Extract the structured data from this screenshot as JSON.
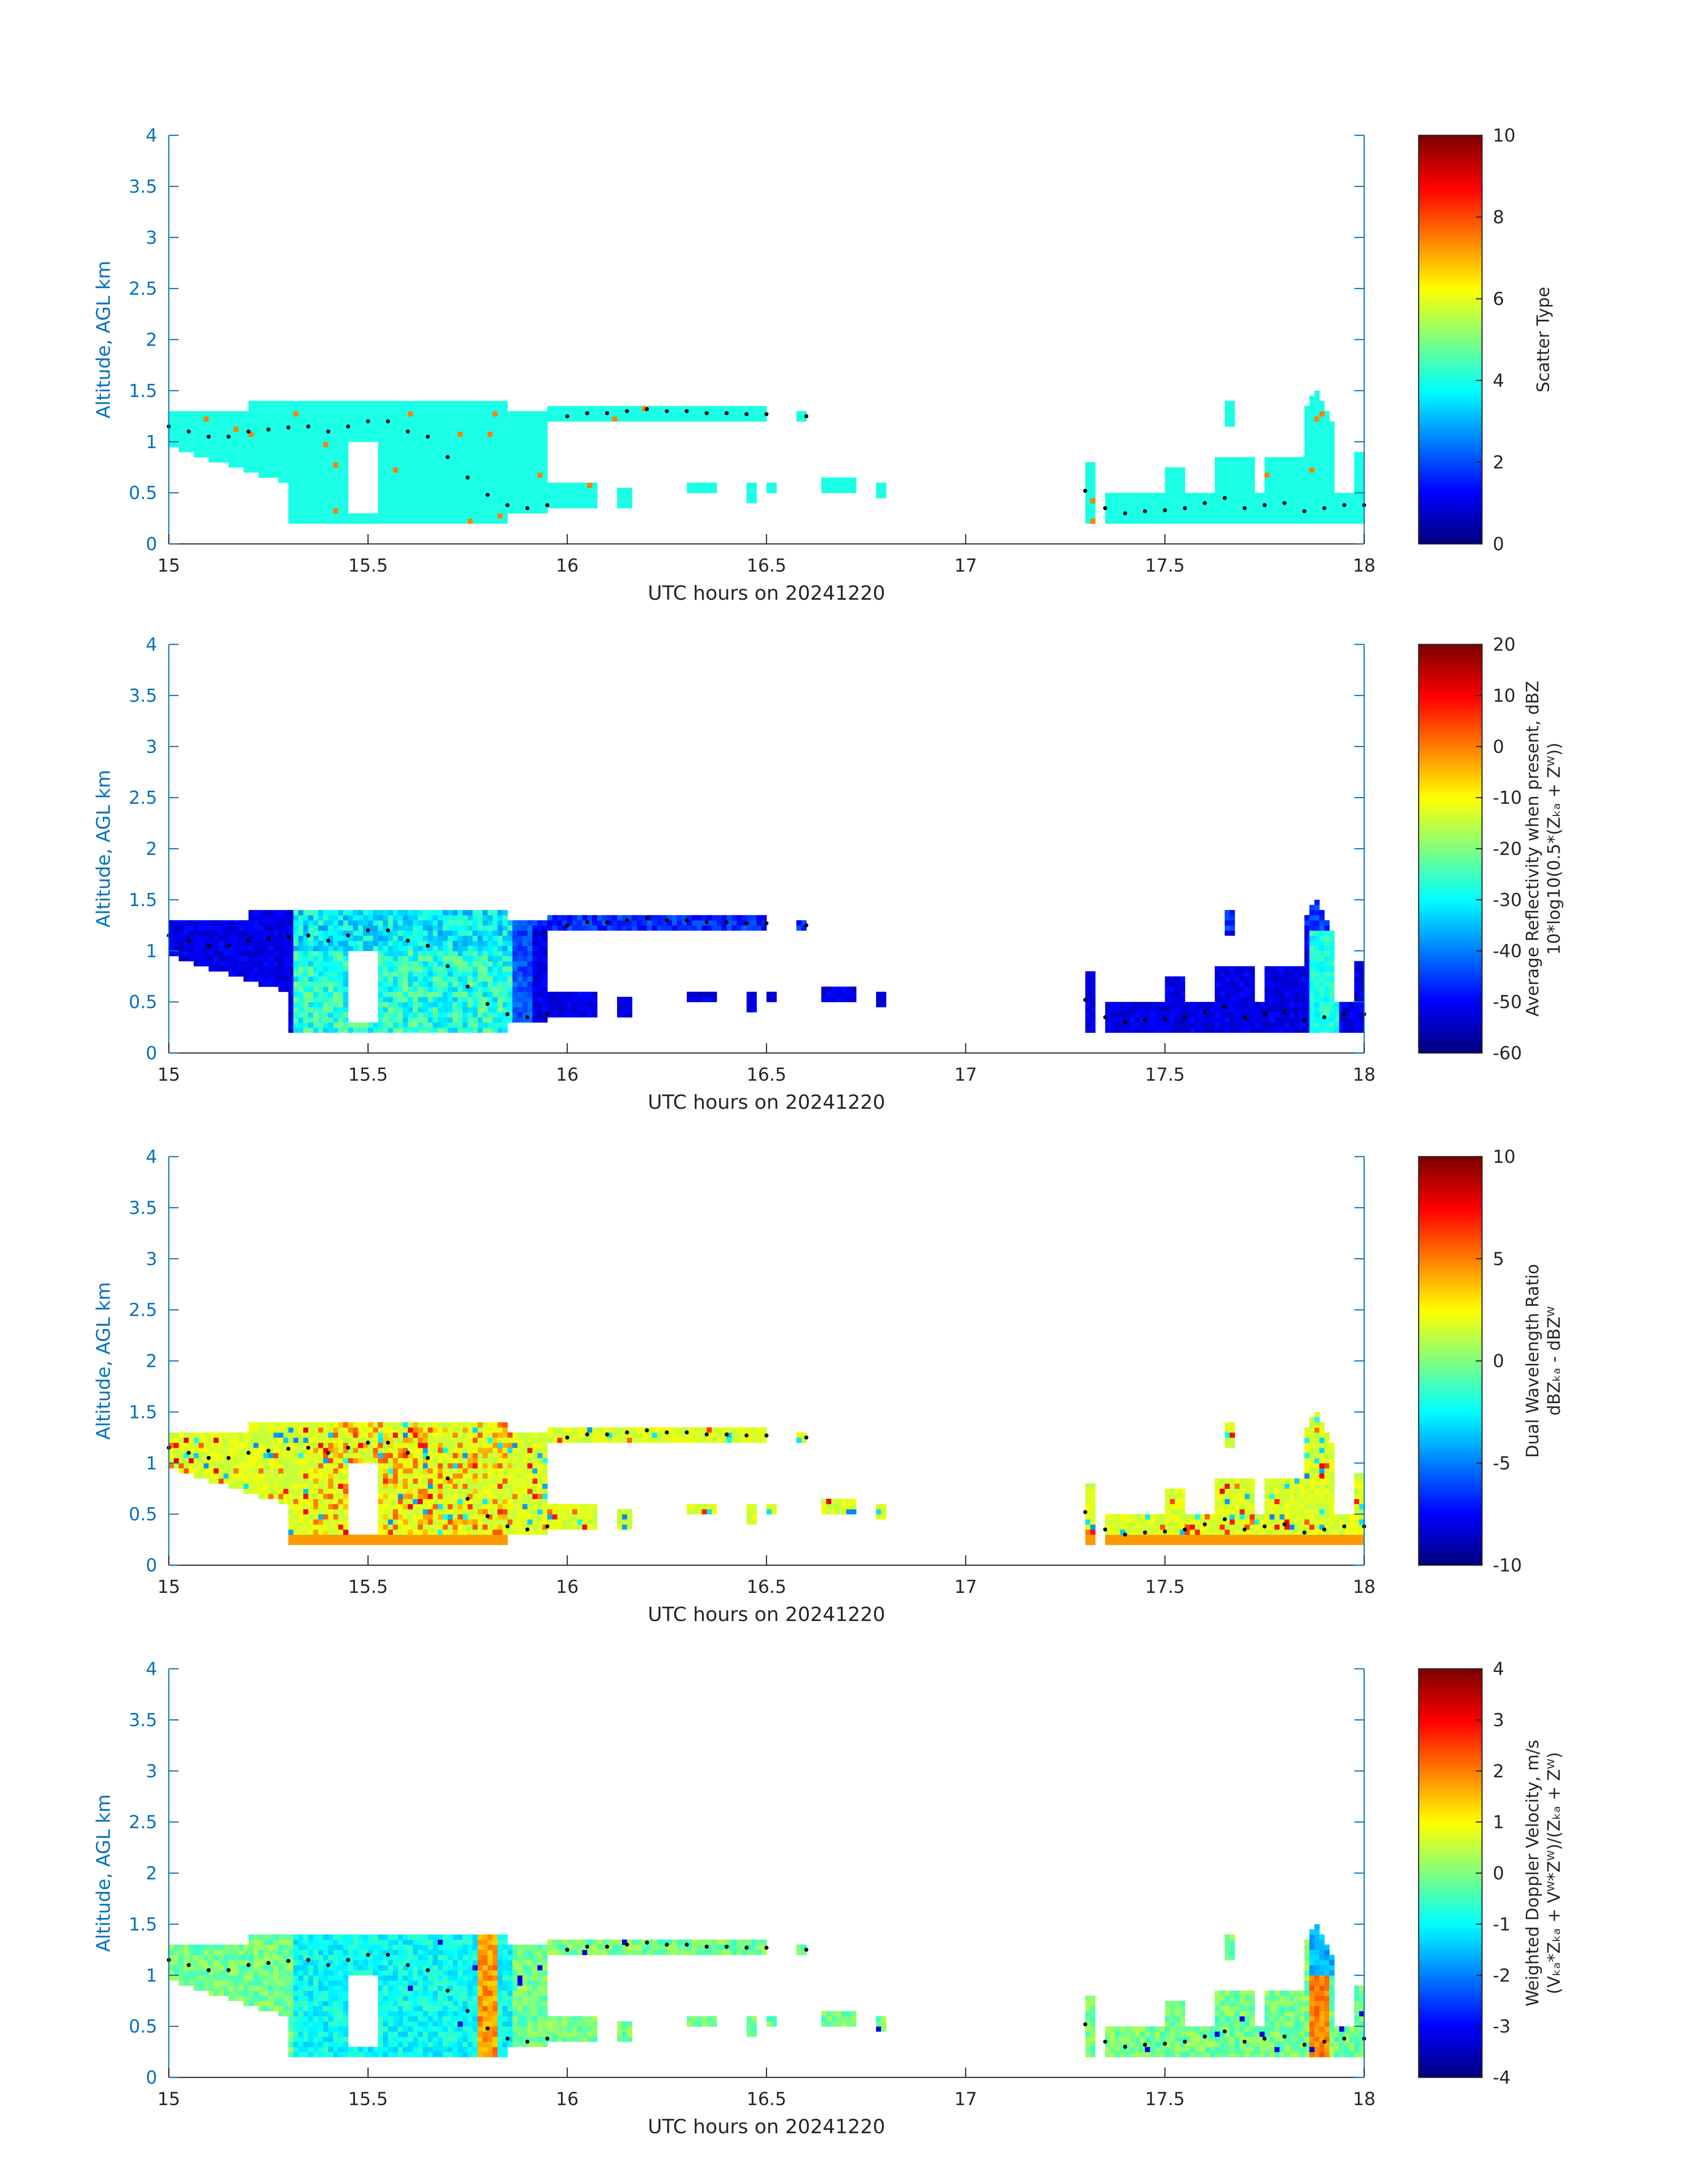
{
  "chart_data": [
    {
      "type": "heatmap",
      "xlabel": "UTC hours on 20241220",
      "ylabel": "Altitude, AGL km",
      "xlim": [
        15,
        18
      ],
      "ylim": [
        0,
        4
      ],
      "xticks": [
        "15",
        "15.5",
        "16",
        "16.5",
        "17",
        "17.5",
        "18"
      ],
      "yticks": [
        "0",
        "0.5",
        "1",
        "1.5",
        "2",
        "2.5",
        "3",
        "3.5",
        "4"
      ],
      "colorbar": {
        "label_lines": [
          "Scatter Type"
        ],
        "min": 0,
        "max": 10,
        "ticks": [
          "0",
          "2",
          "4",
          "6",
          "8",
          "10"
        ],
        "colormap": "jet"
      },
      "field": "scatter_type"
    },
    {
      "type": "heatmap",
      "xlabel": "UTC hours on 20241220",
      "ylabel": "Altitude, AGL km",
      "xlim": [
        15,
        18
      ],
      "ylim": [
        0,
        4
      ],
      "xticks": [
        "15",
        "15.5",
        "16",
        "16.5",
        "17",
        "17.5",
        "18"
      ],
      "yticks": [
        "0",
        "0.5",
        "1",
        "1.5",
        "2",
        "2.5",
        "3",
        "3.5",
        "4"
      ],
      "colorbar": {
        "label_lines": [
          "Average Reflectivity when present, dBZ",
          "10*log10(0.5*(Zₖₐ + Zᵂ))"
        ],
        "min": -60,
        "max": 20,
        "ticks": [
          "-60",
          "-50",
          "-40",
          "-30",
          "-20",
          "-10",
          "0",
          "10",
          "20"
        ],
        "colormap": "jet"
      },
      "field": "reflectivity"
    },
    {
      "type": "heatmap",
      "xlabel": "UTC hours on 20241220",
      "ylabel": "Altitude, AGL km",
      "xlim": [
        15,
        18
      ],
      "ylim": [
        0,
        4
      ],
      "xticks": [
        "15",
        "15.5",
        "16",
        "16.5",
        "17",
        "17.5",
        "18"
      ],
      "yticks": [
        "0",
        "0.5",
        "1",
        "1.5",
        "2",
        "2.5",
        "3",
        "3.5",
        "4"
      ],
      "colorbar": {
        "label_lines": [
          "Dual Wavelength Ratio",
          "dBZₖₐ - dBZᵂ"
        ],
        "min": -10,
        "max": 10,
        "ticks": [
          "-10",
          "-5",
          "0",
          "5",
          "10"
        ],
        "colormap": "jet"
      },
      "field": "dwr"
    },
    {
      "type": "heatmap",
      "xlabel": "UTC hours on 20241220",
      "ylabel": "Altitude, AGL km",
      "xlim": [
        15,
        18
      ],
      "ylim": [
        0,
        4
      ],
      "xticks": [
        "15",
        "15.5",
        "16",
        "16.5",
        "17",
        "17.5",
        "18"
      ],
      "yticks": [
        "0",
        "0.5",
        "1",
        "1.5",
        "2",
        "2.5",
        "3",
        "3.5",
        "4"
      ],
      "colorbar": {
        "label_lines": [
          "Weighted Doppler Velocity, m/s",
          "(Vₖₐ*Zₖₐ + Vᵂ*Zᵂ)/(Zₖₐ + Zᵂ)"
        ],
        "min": -4,
        "max": 4,
        "ticks": [
          "-4",
          "-3",
          "-2",
          "-1",
          "0",
          "1",
          "2",
          "3",
          "4"
        ],
        "colormap": "jet"
      },
      "field": "doppler"
    }
  ],
  "cloud_layers": [
    {
      "segment": "upper-main",
      "x_start": 15.0,
      "x_end": 16.5,
      "bottom_km": 0.2,
      "top_km": 1.35
    },
    {
      "segment": "upper-tail",
      "x_start": 15.95,
      "x_end": 16.6,
      "bottom_km": 1.2,
      "top_km": 1.38
    },
    {
      "segment": "lower-fragments",
      "x_start": 15.95,
      "x_end": 16.8,
      "bottom_km": 0.35,
      "top_km": 0.65
    },
    {
      "segment": "late-cells",
      "x_start": 17.3,
      "x_end": 18.0,
      "bottom_km": 0.2,
      "top_km": 1.55
    }
  ],
  "cloud_base_dots": {
    "x": [
      15.0,
      15.05,
      15.1,
      15.15,
      15.2,
      15.25,
      15.3,
      15.35,
      15.4,
      15.45,
      15.5,
      15.55,
      15.6,
      15.65,
      15.7,
      15.75,
      15.8,
      15.85,
      15.9,
      15.95,
      16.0,
      16.05,
      16.1,
      16.15,
      16.2,
      16.25,
      16.3,
      16.35,
      16.4,
      16.45,
      16.5,
      16.6,
      17.3,
      17.35,
      17.4,
      17.45,
      17.5,
      17.55,
      17.6,
      17.65,
      17.7,
      17.75,
      17.8,
      17.85,
      17.9,
      17.95,
      18.0
    ],
    "y": [
      1.15,
      1.1,
      1.05,
      1.05,
      1.1,
      1.12,
      1.14,
      1.15,
      1.1,
      1.15,
      1.2,
      1.2,
      1.1,
      1.05,
      0.85,
      0.65,
      0.48,
      0.38,
      0.35,
      0.38,
      1.25,
      1.28,
      1.28,
      1.3,
      1.32,
      1.3,
      1.3,
      1.28,
      1.28,
      1.27,
      1.27,
      1.25,
      0.52,
      0.35,
      0.3,
      0.32,
      0.33,
      0.35,
      0.4,
      0.45,
      0.35,
      0.38,
      0.4,
      0.32,
      0.35,
      0.38,
      0.38
    ]
  }
}
